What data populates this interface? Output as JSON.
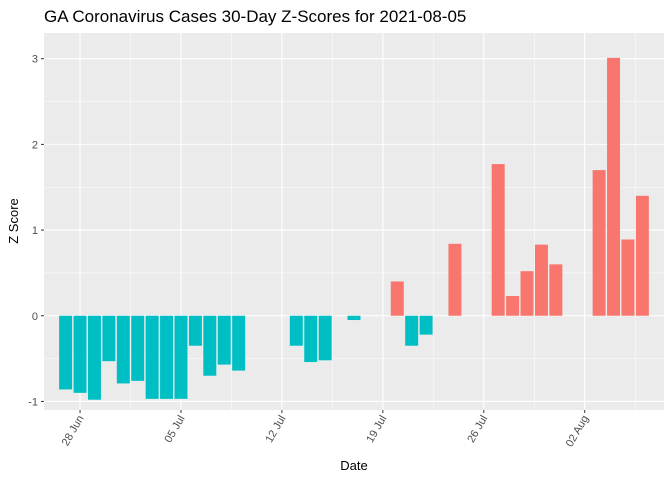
{
  "chart_data": {
    "type": "bar",
    "title": "GA Coronavirus Cases 30-Day Z-Scores for 2021-08-05",
    "xlabel": "Date",
    "ylabel": "Z Score",
    "ylim": [
      -1.1,
      3.3
    ],
    "y_ticks": [
      "-1",
      "0",
      "1",
      "2",
      "3"
    ],
    "x_ticks": [
      {
        "label": "28 Jun",
        "day": 0
      },
      {
        "label": "05 Jul",
        "day": 7
      },
      {
        "label": "12 Jul",
        "day": 14
      },
      {
        "label": "19 Jul",
        "day": 21
      },
      {
        "label": "26 Jul",
        "day": 28
      },
      {
        "label": "02 Aug",
        "day": 35
      }
    ],
    "x_range_days": [
      -2.5,
      40.5
    ],
    "colors": {
      "negative": "#00BFC4",
      "positive": "#F8766D"
    },
    "series": [
      {
        "name": "Z Score",
        "points": [
          {
            "date": "2021-06-27",
            "day": -1,
            "value": -0.86
          },
          {
            "date": "2021-06-28",
            "day": 0,
            "value": -0.9
          },
          {
            "date": "2021-06-29",
            "day": 1,
            "value": -0.98
          },
          {
            "date": "2021-06-30",
            "day": 2,
            "value": -0.53
          },
          {
            "date": "2021-07-01",
            "day": 3,
            "value": -0.79
          },
          {
            "date": "2021-07-02",
            "day": 4,
            "value": -0.76
          },
          {
            "date": "2021-07-03",
            "day": 5,
            "value": -0.97
          },
          {
            "date": "2021-07-04",
            "day": 6,
            "value": -0.97
          },
          {
            "date": "2021-07-05",
            "day": 7,
            "value": -0.97
          },
          {
            "date": "2021-07-06",
            "day": 8,
            "value": -0.35
          },
          {
            "date": "2021-07-07",
            "day": 9,
            "value": -0.7
          },
          {
            "date": "2021-07-08",
            "day": 10,
            "value": -0.57
          },
          {
            "date": "2021-07-09",
            "day": 11,
            "value": -0.64
          },
          {
            "date": "2021-07-13",
            "day": 15,
            "value": -0.35
          },
          {
            "date": "2021-07-14",
            "day": 16,
            "value": -0.54
          },
          {
            "date": "2021-07-15",
            "day": 17,
            "value": -0.52
          },
          {
            "date": "2021-07-17",
            "day": 19,
            "value": -0.05
          },
          {
            "date": "2021-07-20",
            "day": 22,
            "value": 0.4
          },
          {
            "date": "2021-07-21",
            "day": 23,
            "value": -0.35
          },
          {
            "date": "2021-07-22",
            "day": 24,
            "value": -0.22
          },
          {
            "date": "2021-07-24",
            "day": 26,
            "value": 0.84
          },
          {
            "date": "2021-07-27",
            "day": 29,
            "value": 1.77
          },
          {
            "date": "2021-07-28",
            "day": 30,
            "value": 0.23
          },
          {
            "date": "2021-07-29",
            "day": 31,
            "value": 0.52
          },
          {
            "date": "2021-07-30",
            "day": 32,
            "value": 0.83
          },
          {
            "date": "2021-07-31",
            "day": 33,
            "value": 0.6
          },
          {
            "date": "2021-08-03",
            "day": 36,
            "value": 1.7
          },
          {
            "date": "2021-08-04",
            "day": 37,
            "value": 3.01
          },
          {
            "date": "2021-08-05",
            "day": 38,
            "value": 0.89
          },
          {
            "date": "2021-08-06",
            "day": 39,
            "value": 1.4
          }
        ]
      }
    ]
  }
}
